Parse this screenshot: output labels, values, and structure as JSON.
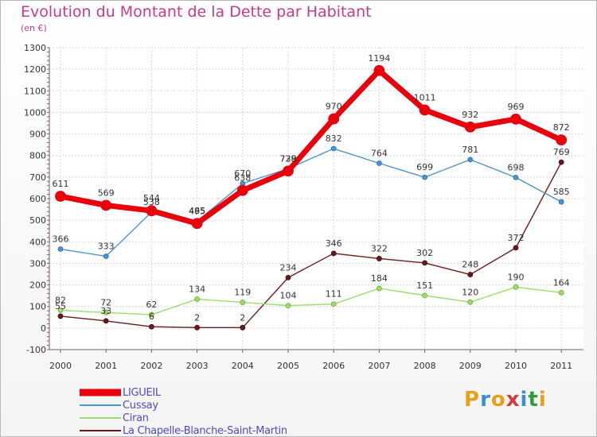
{
  "title": "Evolution du Montant de la Dette par Habitant",
  "unit_label": "(en €)",
  "logo": {
    "text": "Proxiti",
    "letters": [
      "P",
      "r",
      "o",
      "x",
      "i",
      "t",
      "i"
    ],
    "colors": [
      "#e8a01a",
      "#3a8fd0",
      "#e8a01a",
      "#d83a3a",
      "#3a8fd0",
      "#2e9e3e",
      "#e8a01a"
    ]
  },
  "chart_data": {
    "type": "line",
    "title": "Evolution du Montant de la Dette par Habitant",
    "ylabel": "(en €)",
    "xlabel": "",
    "x": [
      "2000",
      "2001",
      "2002",
      "2003",
      "2004",
      "2005",
      "2006",
      "2007",
      "2008",
      "2009",
      "2010",
      "2011"
    ],
    "ylim": [
      -100,
      1300
    ],
    "yticks": [
      "-100",
      "0",
      "100",
      "200",
      "300",
      "400",
      "500",
      "600",
      "700",
      "800",
      "900",
      "1000",
      "1100",
      "1200",
      "1300"
    ],
    "grid": true,
    "legend_position": "bottom-left",
    "series": [
      {
        "name": "LIGUEIL",
        "color": "#e8000b",
        "values": [
          611,
          569,
          544,
          485,
          638,
          728,
          970,
          1194,
          1011,
          932,
          969,
          872
        ],
        "labels": [
          "611",
          "569",
          "544",
          "485",
          "638",
          "728",
          "970",
          "1194",
          "1011",
          "932",
          "969",
          "872"
        ]
      },
      {
        "name": "Cussay",
        "color": "#4a92d0",
        "values": [
          366,
          333,
          538,
          495,
          670,
          739,
          832,
          764,
          699,
          781,
          698,
          585
        ],
        "labels": [
          "366",
          "333",
          "538",
          "495",
          "670",
          "739",
          "832",
          "764",
          "699",
          "781",
          "698",
          "585"
        ]
      },
      {
        "name": "Ciran",
        "color": "#9bde6b",
        "values": [
          82,
          72,
          62,
          134,
          119,
          104,
          111,
          184,
          151,
          120,
          190,
          164
        ],
        "labels": [
          "82",
          "72",
          "62",
          "134",
          "119",
          "104",
          "111",
          "184",
          "151",
          "120",
          "190",
          "164"
        ]
      },
      {
        "name": "La Chapelle-Blanche-Saint-Martin",
        "color": "#6b1a1a",
        "values": [
          55,
          33,
          6,
          2,
          2,
          234,
          346,
          322,
          302,
          248,
          372,
          769
        ],
        "labels": [
          "55",
          "33",
          "6",
          "2",
          "2",
          "234",
          "346",
          "322",
          "302",
          "248",
          "372",
          "769"
        ]
      }
    ]
  }
}
